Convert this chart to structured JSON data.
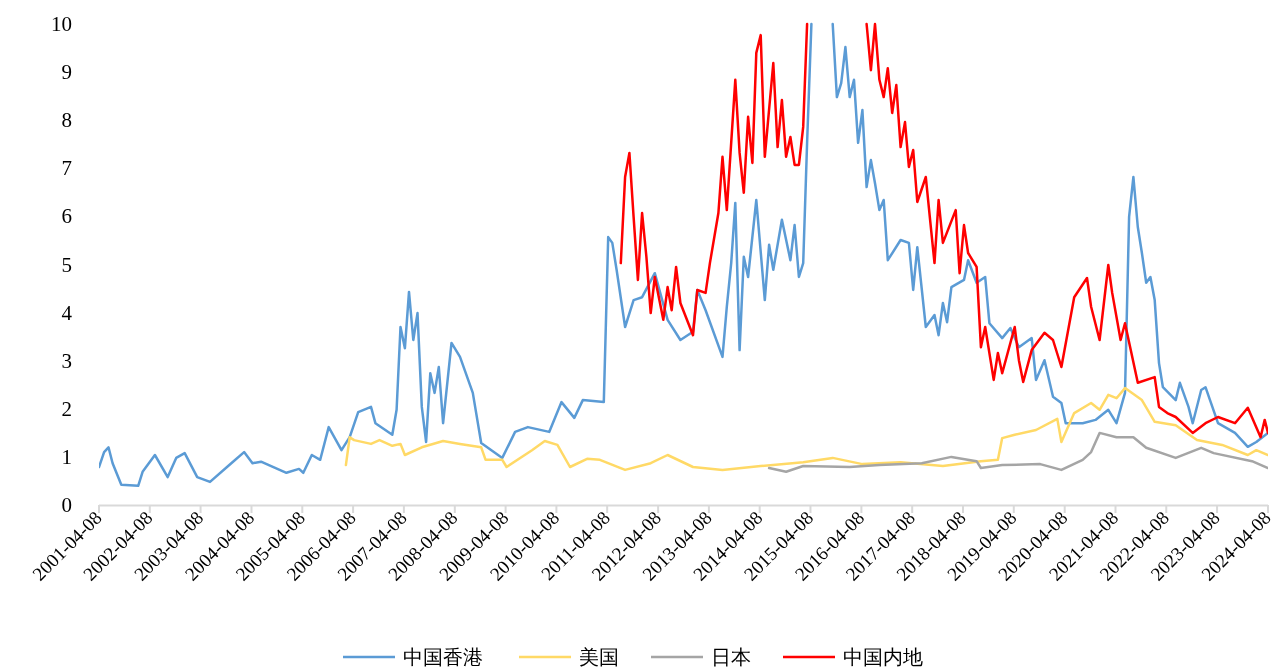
{
  "chart_data": {
    "type": "line",
    "xlim": [
      "2001-04-08",
      "2024-04-08"
    ],
    "xticks": [
      "2001-04-08",
      "2002-04-08",
      "2003-04-08",
      "2004-04-08",
      "2005-04-08",
      "2006-04-08",
      "2007-04-08",
      "2008-04-08",
      "2009-04-08",
      "2010-04-08",
      "2011-04-08",
      "2012-04-08",
      "2013-04-08",
      "2014-04-08",
      "2015-04-08",
      "2016-04-08",
      "2017-04-08",
      "2018-04-08",
      "2019-04-08",
      "2020-04-08",
      "2021-04-08",
      "2022-04-08",
      "2023-04-08",
      "2024-04-08"
    ],
    "ylim": [
      0,
      10
    ],
    "yticks": [
      0,
      1,
      2,
      3,
      4,
      5,
      6,
      7,
      8,
      9,
      10
    ],
    "grid": false,
    "legend": "bottom",
    "series": [
      {
        "name": "中国香港",
        "color": "#5b9bd5",
        "x": [
          "2001-04-08",
          "2001-05",
          "2001-06",
          "2001-07",
          "2001-09",
          "2002-01",
          "2002-02",
          "2002-05",
          "2002-08",
          "2002-10",
          "2002-12",
          "2003-03",
          "2003-06",
          "2003-11",
          "2004-02",
          "2004-04",
          "2004-06",
          "2004-12",
          "2005-03",
          "2005-04",
          "2005-06",
          "2005-08",
          "2005-10",
          "2006-01",
          "2006-03",
          "2006-05",
          "2006-08",
          "2006-09",
          "2007-01",
          "2007-02",
          "2007-03",
          "2007-04",
          "2007-05",
          "2007-06",
          "2007-07",
          "2007-08",
          "2007-09",
          "2007-10",
          "2007-11",
          "2007-12",
          "2008-01",
          "2008-03",
          "2008-05",
          "2008-08",
          "2008-10",
          "2009-03",
          "2009-06",
          "2009-09",
          "2010-02",
          "2010-05",
          "2010-08",
          "2010-10",
          "2011-03",
          "2011-04",
          "2011-05",
          "2011-06",
          "2011-08",
          "2011-10",
          "2011-12",
          "2012-03",
          "2012-06",
          "2012-09",
          "2012-12",
          "2013-01",
          "2013-03",
          "2013-07",
          "2013-08",
          "2013-09",
          "2013-10",
          "2013-11",
          "2013-12",
          "2014-01",
          "2014-03",
          "2014-05",
          "2014-06",
          "2014-07",
          "2014-09",
          "2014-11",
          "2014-12",
          "2015-01",
          "2015-02",
          "2015-03",
          "2015-04",
          "2015-06",
          "2015-09",
          "2015-10",
          "2015-11",
          "2015-12",
          "2016-01",
          "2016-02",
          "2016-03",
          "2016-04",
          "2016-05",
          "2016-06",
          "2016-07",
          "2016-08",
          "2016-09",
          "2016-10",
          "2017-01",
          "2017-03",
          "2017-04",
          "2017-05",
          "2017-07",
          "2017-09",
          "2017-10",
          "2017-11",
          "2017-12",
          "2018-01",
          "2018-04",
          "2018-05",
          "2018-07",
          "2018-09",
          "2018-10",
          "2019-01",
          "2019-03",
          "2019-05",
          "2019-08",
          "2019-09",
          "2019-11",
          "2020-01",
          "2020-03",
          "2020-04",
          "2020-08",
          "2020-11",
          "2021-02",
          "2021-04",
          "2021-06",
          "2021-07",
          "2021-08",
          "2021-09",
          "2021-10",
          "2021-11",
          "2021-12",
          "2022-01",
          "2022-02",
          "2022-03",
          "2022-06",
          "2022-07",
          "2022-09",
          "2022-10",
          "2022-12",
          "2023-01",
          "2023-04",
          "2023-08",
          "2023-11",
          "2024-01",
          "2024-04-08"
        ],
        "values": [
          0.79,
          1.1,
          1.2,
          0.87,
          0.42,
          0.4,
          0.69,
          1.04,
          0.58,
          0.98,
          1.08,
          0.58,
          0.48,
          0.87,
          1.1,
          0.87,
          0.9,
          0.67,
          0.75,
          0.67,
          1.04,
          0.94,
          1.62,
          1.14,
          1.41,
          1.93,
          2.04,
          1.7,
          1.46,
          1.98,
          3.7,
          3.26,
          4.43,
          3.43,
          3.99,
          2.04,
          1.31,
          2.74,
          2.33,
          2.87,
          1.7,
          3.37,
          3.08,
          2.33,
          1.29,
          0.98,
          1.52,
          1.62,
          1.52,
          2.14,
          1.81,
          2.18,
          2.14,
          5.57,
          5.45,
          4.89,
          3.7,
          4.26,
          4.32,
          4.82,
          3.85,
          3.43,
          3.6,
          4.47,
          4.05,
          3.08,
          4.12,
          5.03,
          6.28,
          3.22,
          5.16,
          4.74,
          6.34,
          4.26,
          5.41,
          4.89,
          5.93,
          5.09,
          5.82,
          4.74,
          5.03,
          7.53,
          10,
          null,
          10,
          8.48,
          8.77,
          9.52,
          8.48,
          8.84,
          7.53,
          8.21,
          6.61,
          7.17,
          6.69,
          6.13,
          6.34,
          5.09,
          5.51,
          5.45,
          4.47,
          5.36,
          3.7,
          3.95,
          3.53,
          4.2,
          3.8,
          4.53,
          4.68,
          5.09,
          4.62,
          4.74,
          3.78,
          3.47,
          3.68,
          3.28,
          3.47,
          2.6,
          3.01,
          2.25,
          2.12,
          1.7,
          1.7,
          1.77,
          1.98,
          1.7,
          2.33,
          5.99,
          6.82,
          5.78,
          5.24,
          4.62,
          4.74,
          4.26,
          2.95,
          2.45,
          2.18,
          2.54,
          2.04,
          1.7,
          2.39,
          2.45,
          1.7,
          1.5,
          1.21,
          1.31,
          1.5
        ]
      },
      {
        "name": "美国",
        "color": "#ffd966",
        "x": [
          "2006-02",
          "2006-03",
          "2006-04",
          "2006-08",
          "2006-10",
          "2007-01",
          "2007-03",
          "2007-04",
          "2007-08",
          "2008-01",
          "2008-05",
          "2008-10",
          "2008-11",
          "2009-03",
          "2009-04",
          "2009-10",
          "2010-01",
          "2010-04",
          "2010-07",
          "2010-11",
          "2011-02",
          "2011-08",
          "2012-02",
          "2012-06",
          "2012-12",
          "2013-07",
          "2014-04",
          "2015-02",
          "2015-09",
          "2016-04",
          "2017-01",
          "2017-11",
          "2018-08",
          "2018-12",
          "2019-01",
          "2019-04",
          "2019-09",
          "2020-02",
          "2020-03",
          "2020-06",
          "2020-10",
          "2020-12",
          "2021-02",
          "2021-04",
          "2021-06",
          "2021-10",
          "2022-01",
          "2022-06",
          "2022-11",
          "2023-05",
          "2023-11",
          "2024-01",
          "2024-04-08"
        ],
        "values": [
          0.83,
          1.41,
          1.35,
          1.27,
          1.35,
          1.23,
          1.27,
          1.04,
          1.2,
          1.33,
          1.27,
          1.2,
          0.94,
          0.94,
          0.79,
          1.14,
          1.33,
          1.25,
          0.79,
          0.96,
          0.94,
          0.73,
          0.87,
          1.04,
          0.79,
          0.73,
          0.81,
          0.89,
          0.98,
          0.85,
          0.89,
          0.81,
          0.91,
          0.94,
          1.39,
          1.46,
          1.56,
          1.79,
          1.31,
          1.91,
          2.12,
          1.98,
          2.29,
          2.22,
          2.43,
          2.18,
          1.73,
          1.66,
          1.35,
          1.25,
          1.04,
          1.14,
          1.04
        ]
      },
      {
        "name": "日本",
        "color": "#a5a5a5",
        "x": [
          "2014-06",
          "2014-10",
          "2015-02",
          "2016-01",
          "2016-08",
          "2017-06",
          "2018-01",
          "2018-07",
          "2018-08",
          "2019-01",
          "2019-10",
          "2020-03",
          "2020-08",
          "2020-10",
          "2020-12",
          "2021-04",
          "2021-08",
          "2021-11",
          "2022-06",
          "2022-12",
          "2023-03",
          "2023-12",
          "2024-04-08"
        ],
        "values": [
          0.77,
          0.69,
          0.81,
          0.79,
          0.83,
          0.87,
          1.0,
          0.91,
          0.77,
          0.83,
          0.85,
          0.73,
          0.94,
          1.1,
          1.5,
          1.41,
          1.41,
          1.19,
          0.98,
          1.19,
          1.08,
          0.91,
          0.77
        ]
      },
      {
        "name": "中国内地",
        "color": "#ff0000",
        "x": [
          "2011-07",
          "2011-08",
          "2011-09",
          "2011-10",
          "2011-11",
          "2011-12",
          "2012-01",
          "2012-02",
          "2012-03",
          "2012-05",
          "2012-06",
          "2012-07",
          "2012-08",
          "2012-09",
          "2012-12",
          "2013-01",
          "2013-03",
          "2013-04",
          "2013-06",
          "2013-07",
          "2013-08",
          "2013-10",
          "2013-11",
          "2013-12",
          "2014-01",
          "2014-02",
          "2014-03",
          "2014-04",
          "2014-05",
          "2014-07",
          "2014-08",
          "2014-09",
          "2014-10",
          "2014-11",
          "2014-12",
          "2015-01",
          "2015-02",
          "2015-03",
          "2015-09",
          "2016-05",
          "2016-06",
          "2016-07",
          "2016-08",
          "2016-09",
          "2016-10",
          "2016-11",
          "2016-12",
          "2017-01",
          "2017-02",
          "2017-03",
          "2017-04",
          "2017-05",
          "2017-07",
          "2017-08",
          "2017-09",
          "2017-10",
          "2017-11",
          "2018-02",
          "2018-03",
          "2018-04",
          "2018-05",
          "2018-07",
          "2018-08",
          "2018-09",
          "2018-11",
          "2018-12",
          "2019-01",
          "2019-04",
          "2019-05",
          "2019-06",
          "2019-08",
          "2019-11",
          "2020-01",
          "2020-03",
          "2020-06",
          "2020-09",
          "2020-10",
          "2020-12",
          "2021-02",
          "2021-03",
          "2021-05",
          "2021-06",
          "2021-09",
          "2022-01",
          "2022-02",
          "2022-04",
          "2022-06",
          "2022-10",
          "2023-01",
          "2023-04",
          "2023-08",
          "2023-11",
          "2024-02",
          "2024-03",
          "2024-04-08"
        ],
        "values": [
          5.03,
          6.82,
          7.32,
          5.99,
          4.68,
          6.07,
          5.16,
          3.99,
          4.74,
          3.85,
          4.53,
          4.05,
          4.95,
          4.2,
          3.53,
          4.47,
          4.41,
          5.03,
          6.07,
          7.24,
          6.13,
          8.84,
          7.32,
          6.49,
          8.07,
          7.11,
          9.4,
          9.77,
          7.24,
          9.19,
          7.44,
          8.42,
          7.24,
          7.65,
          7.07,
          7.07,
          7.86,
          10,
          null,
          10,
          9.04,
          10,
          8.84,
          8.48,
          9.08,
          8.15,
          8.73,
          7.44,
          7.96,
          7.03,
          7.38,
          6.3,
          6.82,
          5.93,
          5.03,
          6.34,
          5.45,
          6.13,
          4.82,
          5.82,
          5.24,
          4.95,
          3.28,
          3.7,
          2.6,
          3.16,
          2.74,
          3.7,
          3.01,
          2.56,
          3.22,
          3.58,
          3.43,
          2.87,
          4.32,
          4.72,
          4.12,
          3.43,
          4.99,
          4.41,
          3.43,
          3.78,
          2.54,
          2.66,
          2.04,
          1.91,
          1.83,
          1.5,
          1.7,
          1.83,
          1.7,
          2.02,
          1.41,
          1.77,
          1.5
        ]
      }
    ]
  }
}
